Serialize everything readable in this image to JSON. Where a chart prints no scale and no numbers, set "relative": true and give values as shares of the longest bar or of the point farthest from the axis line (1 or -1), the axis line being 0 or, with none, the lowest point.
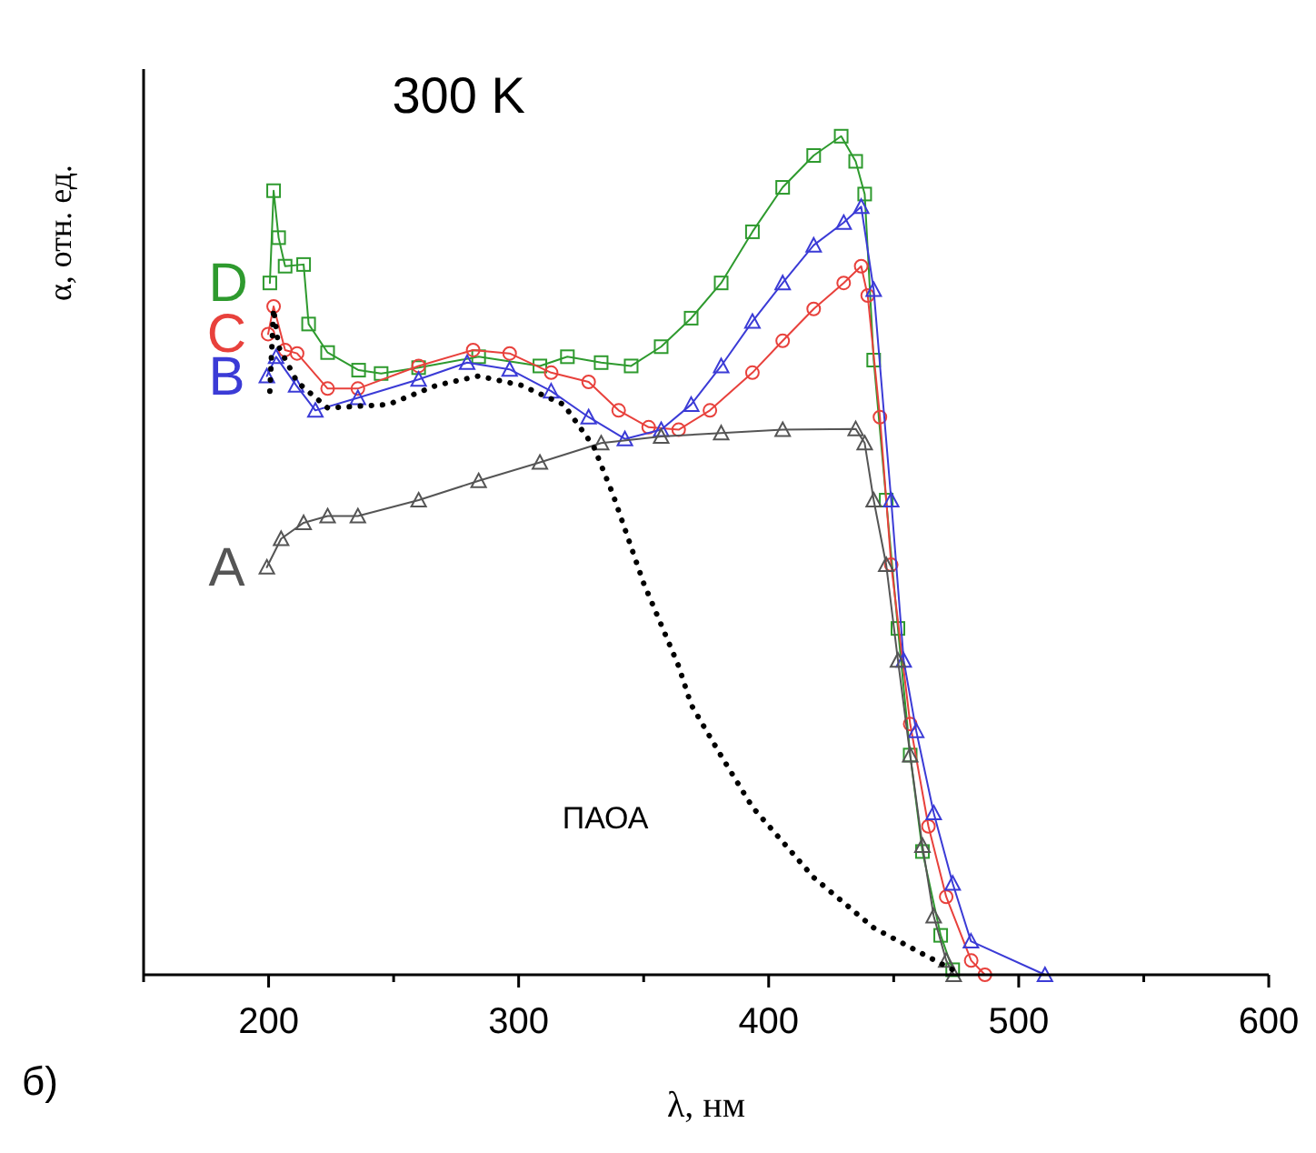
{
  "chart_data": {
    "type": "line",
    "title": "300 K",
    "xlabel": "λ, нм",
    "ylabel": "α, отн. ед.",
    "relative": true,
    "xlim": [
      150,
      600
    ],
    "xticks": [
      200,
      300,
      400,
      500,
      600
    ],
    "annotations": [
      "б)"
    ],
    "series": [
      {
        "name": "D",
        "color": "#2e9a2e",
        "marker": "square",
        "x": [
          200.5,
          202,
          204,
          206.6,
          214,
          216,
          223.6,
          236,
          245,
          260,
          284,
          308.5,
          319.5,
          333,
          345,
          357,
          369,
          381,
          393.5,
          405.6,
          418,
          429,
          434.8,
          438.4,
          442,
          447,
          451.7,
          456.6,
          461.5,
          468.8,
          473.6
        ],
        "values": [
          0.825,
          0.935,
          0.879,
          0.845,
          0.847,
          0.776,
          0.742,
          0.721,
          0.717,
          0.724,
          0.737,
          0.726,
          0.737,
          0.73,
          0.726,
          0.749,
          0.783,
          0.825,
          0.886,
          0.939,
          0.977,
          1,
          0.97,
          0.931,
          0.733,
          0.566,
          0.413,
          0.262,
          0.147,
          0.047,
          0.006
        ]
      },
      {
        "name": "C",
        "color": "#e8413c",
        "marker": "circle",
        "x": [
          199.8,
          202,
          206.6,
          211.4,
          223.6,
          235.7,
          260,
          281.8,
          296.4,
          313,
          328,
          340,
          352,
          364,
          376.5,
          393.5,
          405.6,
          418,
          430,
          437,
          439.6,
          444.5,
          449,
          456.6,
          463.9,
          471,
          481,
          486.5
        ],
        "values": [
          0.764,
          0.797,
          0.745,
          0.741,
          0.699,
          0.699,
          0.726,
          0.745,
          0.741,
          0.718,
          0.707,
          0.673,
          0.653,
          0.65,
          0.673,
          0.718,
          0.756,
          0.794,
          0.825,
          0.845,
          0.81,
          0.665,
          0.489,
          0.299,
          0.177,
          0.093,
          0.017,
          0
        ]
      },
      {
        "name": "B",
        "color": "#3b3bd6",
        "marker": "triangle",
        "x": [
          199.3,
          203,
          211,
          218.7,
          235.7,
          260,
          279.4,
          296.4,
          313,
          328,
          342.5,
          357,
          369,
          381,
          393.5,
          405.6,
          418,
          430,
          437,
          442,
          449,
          454,
          459,
          466,
          473.6,
          480.9,
          510.5
        ],
        "values": [
          0.714,
          0.737,
          0.703,
          0.673,
          0.688,
          0.71,
          0.73,
          0.722,
          0.696,
          0.665,
          0.639,
          0.65,
          0.68,
          0.726,
          0.779,
          0.825,
          0.87,
          0.897,
          0.916,
          0.817,
          0.566,
          0.375,
          0.291,
          0.193,
          0.109,
          0.04,
          0
        ]
      },
      {
        "name": "A",
        "color": "#555555",
        "marker": "triangle",
        "x": [
          199.3,
          205,
          214,
          223.6,
          235.7,
          260,
          284,
          308.5,
          333,
          357,
          381,
          405.6,
          434.8,
          438.4,
          442,
          447,
          451.7,
          456.6,
          461.5,
          466,
          471,
          474
        ],
        "values": [
          0.486,
          0.52,
          0.539,
          0.547,
          0.547,
          0.566,
          0.589,
          0.611,
          0.634,
          0.642,
          0.646,
          0.65,
          0.651,
          0.634,
          0.566,
          0.489,
          0.375,
          0.262,
          0.154,
          0.07,
          0.017,
          0
        ]
      },
      {
        "name": "ПАОА",
        "color": "#000000",
        "marker": "none",
        "line_style": "dotted",
        "x": [
          200.5,
          202,
          204,
          211.4,
          223.6,
          247.8,
          267.3,
          284,
          301,
          318,
          330,
          337.7,
          350,
          364,
          369,
          381,
          393.5,
          418,
          442,
          461.5,
          473.6
        ],
        "values": [
          0.696,
          0.794,
          0.749,
          0.707,
          0.676,
          0.68,
          0.703,
          0.714,
          0.703,
          0.68,
          0.63,
          0.573,
          0.467,
          0.368,
          0.322,
          0.261,
          0.2,
          0.116,
          0.056,
          0.025,
          0.006
        ]
      }
    ]
  }
}
